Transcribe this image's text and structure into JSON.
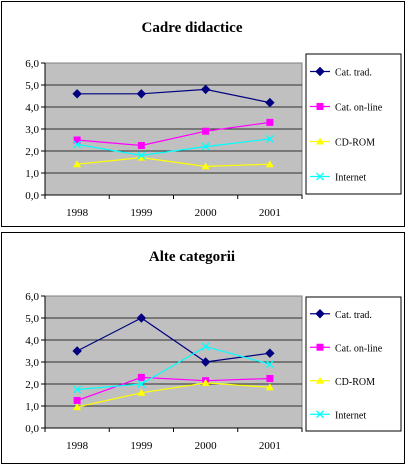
{
  "chart_data": [
    {
      "type": "line",
      "title": "Cadre didactice",
      "categories": [
        "1998",
        "1999",
        "2000",
        "2001"
      ],
      "ylim": [
        0,
        6
      ],
      "yticks": [
        "0,0",
        "1,0",
        "2,0",
        "3,0",
        "4,0",
        "5,0",
        "6,0"
      ],
      "grid": true,
      "legend_position": "right",
      "series": [
        {
          "name": "Cat. trad.",
          "color": "#000080",
          "marker": "diamond",
          "values": [
            4.6,
            4.6,
            4.8,
            4.2
          ]
        },
        {
          "name": "Cat. on-line",
          "color": "#ff00ff",
          "marker": "square",
          "values": [
            2.5,
            2.25,
            2.9,
            3.3
          ]
        },
        {
          "name": "CD-ROM",
          "color": "#ffff00",
          "marker": "triangle",
          "values": [
            1.4,
            1.7,
            1.3,
            1.4
          ]
        },
        {
          "name": "Internet",
          "color": "#00ffff",
          "marker": "x",
          "values": [
            2.3,
            1.8,
            2.2,
            2.55
          ]
        }
      ]
    },
    {
      "type": "line",
      "title": "Alte categorii",
      "categories": [
        "1998",
        "1999",
        "2000",
        "2001"
      ],
      "ylim": [
        0,
        6
      ],
      "yticks": [
        "0,0",
        "1,0",
        "2,0",
        "3,0",
        "4,0",
        "5,0",
        "6,0"
      ],
      "grid": true,
      "legend_position": "right",
      "series": [
        {
          "name": "Cat. trad.",
          "color": "#000080",
          "marker": "diamond",
          "values": [
            3.5,
            5.0,
            3.0,
            3.4
          ]
        },
        {
          "name": "Cat. on-line",
          "color": "#ff00ff",
          "marker": "square",
          "values": [
            1.25,
            2.3,
            2.15,
            2.25
          ]
        },
        {
          "name": "CD-ROM",
          "color": "#ffff00",
          "marker": "triangle",
          "values": [
            0.95,
            1.6,
            2.05,
            1.85
          ]
        },
        {
          "name": "Internet",
          "color": "#00ffff",
          "marker": "x",
          "values": [
            1.75,
            2.0,
            3.7,
            2.9
          ]
        }
      ]
    }
  ]
}
